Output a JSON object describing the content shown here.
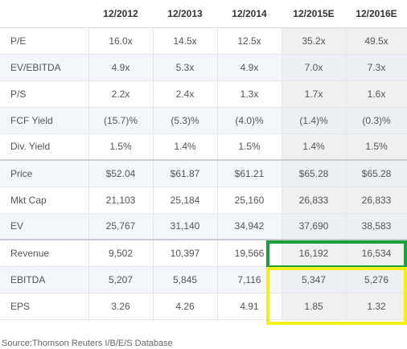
{
  "table": {
    "columns": [
      "",
      "12/2012",
      "12/2013",
      "12/2014",
      "12/2015E",
      "12/2016E"
    ],
    "rows": [
      {
        "label": "P/E",
        "values": [
          "16.0x",
          "14.5x",
          "12.5x",
          "35.2x",
          "49.5x"
        ]
      },
      {
        "label": "EV/EBITDA",
        "values": [
          "4.9x",
          "5.3x",
          "4.9x",
          "7.0x",
          "7.3x"
        ]
      },
      {
        "label": "P/S",
        "values": [
          "2.2x",
          "2.4x",
          "1.3x",
          "1.7x",
          "1.6x"
        ]
      },
      {
        "label": "FCF Yield",
        "values": [
          "(15.7)%",
          "(5.3)%",
          "(4.0)%",
          "(1.4)%",
          "(0.3)%"
        ]
      },
      {
        "label": "Div. Yield",
        "values": [
          "1.5%",
          "1.4%",
          "1.5%",
          "1.4%",
          "1.5%"
        ]
      },
      {
        "label": "Price",
        "values": [
          "$52.04",
          "$61.87",
          "$61.21",
          "$65.28",
          "$65.28"
        ]
      },
      {
        "label": "Mkt Cap",
        "values": [
          "21,103",
          "25,184",
          "25,160",
          "26,833",
          "26,833"
        ]
      },
      {
        "label": "EV",
        "values": [
          "25,767",
          "31,140",
          "34,942",
          "37,690",
          "38,583"
        ]
      },
      {
        "label": "Revenue",
        "values": [
          "9,502",
          "10,397",
          "19,566",
          "16,192",
          "16,534"
        ]
      },
      {
        "label": "EBITDA",
        "values": [
          "5,207",
          "5,845",
          "7,116",
          "5,347",
          "5,276"
        ]
      },
      {
        "label": "EPS",
        "values": [
          "3.26",
          "4.26",
          "4.91",
          "1.85",
          "1.32"
        ]
      }
    ]
  },
  "highlights": {
    "green_color": "#1f9e3c",
    "yellow_color": "#f4ee1a"
  },
  "source": "Source:Thomson Reuters I/B/E/S Database"
}
